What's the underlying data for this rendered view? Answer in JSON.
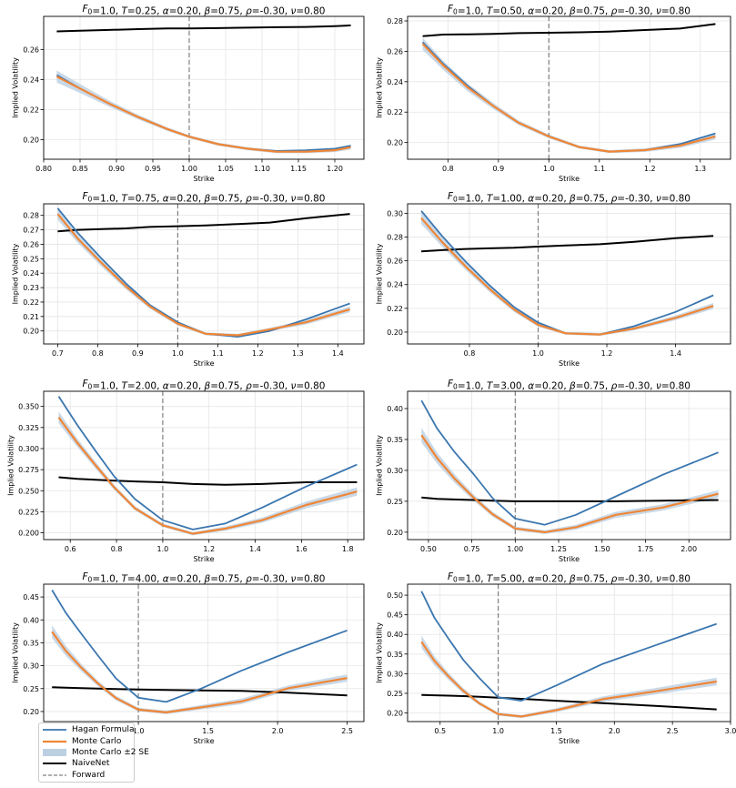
{
  "legend": {
    "items": [
      {
        "label": "Hagan Formula",
        "color": "#3a76af",
        "style": "line"
      },
      {
        "label": "Monte Carlo",
        "color": "#ef8636",
        "style": "line"
      },
      {
        "label": "Monte Carlo ±2 SE",
        "color": "#bcd0e2",
        "style": "band"
      },
      {
        "label": "NaiveNet",
        "color": "#000000",
        "style": "line"
      },
      {
        "label": "Forward",
        "color": "#7f7f7f",
        "style": "dashed"
      }
    ]
  },
  "chart_data": [
    {
      "type": "line",
      "title": "F0=1.0, T=0.25, α=0.20, β=0.75, ρ=-0.30, ν=0.80",
      "T": "0.25",
      "xlabel": "Strike",
      "ylabel": "Implied Volatility",
      "xlim": [
        0.8,
        1.24
      ],
      "ylim": [
        0.187,
        0.282
      ],
      "xticks": [
        0.8,
        0.85,
        0.9,
        0.95,
        1.0,
        1.05,
        1.1,
        1.15,
        1.2
      ],
      "xtick_labels": [
        "0.80",
        "0.85",
        "0.90",
        "0.95",
        "1.00",
        "1.05",
        "1.10",
        "1.15",
        "1.20"
      ],
      "yticks": [
        0.2,
        0.22,
        0.24,
        0.26
      ],
      "ytick_labels": [
        "0.20",
        "0.22",
        "0.24",
        "0.26"
      ],
      "forward": 1.0,
      "x": [
        0.818,
        0.85,
        0.89,
        0.93,
        0.97,
        1.0,
        1.04,
        1.08,
        1.12,
        1.16,
        1.2,
        1.222
      ],
      "series": [
        {
          "name": "Hagan Formula",
          "values": [
            0.243,
            0.234,
            0.224,
            0.215,
            0.207,
            0.202,
            0.197,
            0.194,
            0.1925,
            0.193,
            0.194,
            0.196
          ]
        },
        {
          "name": "Monte Carlo",
          "values": [
            0.242,
            0.234,
            0.224,
            0.215,
            0.207,
            0.202,
            0.197,
            0.194,
            0.192,
            0.192,
            0.193,
            0.195
          ]
        },
        {
          "name": "NaiveNet",
          "values": [
            0.272,
            0.2725,
            0.273,
            0.2735,
            0.274,
            0.274,
            0.2742,
            0.2745,
            0.2748,
            0.275,
            0.2755,
            0.276
          ]
        }
      ],
      "band": {
        "name": "Monte Carlo ±2 SE",
        "halfwidth": [
          0.004,
          0.003,
          0.002,
          0.0015,
          0.0012,
          0.001,
          0.001,
          0.001,
          0.001,
          0.001,
          0.0012,
          0.0015
        ]
      }
    },
    {
      "type": "line",
      "title": "F0=1.0, T=0.50, α=0.20, β=0.75, ρ=-0.30, ν=0.80",
      "T": "0.50",
      "xlabel": "Strike",
      "ylabel": "Implied Volatility",
      "xlim": [
        0.72,
        1.36
      ],
      "ylim": [
        0.189,
        0.283
      ],
      "xticks": [
        0.8,
        0.9,
        1.0,
        1.1,
        1.2,
        1.3
      ],
      "xtick_labels": [
        "0.8",
        "0.9",
        "1.0",
        "1.1",
        "1.2",
        "1.3"
      ],
      "yticks": [
        0.2,
        0.22,
        0.24,
        0.26,
        0.28
      ],
      "ytick_labels": [
        "0.20",
        "0.22",
        "0.24",
        "0.26",
        "0.28"
      ],
      "forward": 1.0,
      "x": [
        0.75,
        0.79,
        0.84,
        0.89,
        0.94,
        1.0,
        1.06,
        1.12,
        1.19,
        1.26,
        1.33
      ],
      "series": [
        {
          "name": "Hagan Formula",
          "values": [
            0.266,
            0.252,
            0.237,
            0.224,
            0.213,
            0.204,
            0.197,
            0.194,
            0.195,
            0.199,
            0.206
          ]
        },
        {
          "name": "Monte Carlo",
          "values": [
            0.265,
            0.251,
            0.236,
            0.224,
            0.213,
            0.204,
            0.197,
            0.194,
            0.195,
            0.198,
            0.204
          ]
        },
        {
          "name": "NaiveNet",
          "values": [
            0.27,
            0.271,
            0.2712,
            0.2715,
            0.272,
            0.2722,
            0.2725,
            0.273,
            0.274,
            0.275,
            0.278
          ]
        }
      ],
      "band": {
        "name": "Monte Carlo ±2 SE",
        "halfwidth": [
          0.004,
          0.003,
          0.0025,
          0.002,
          0.0015,
          0.0012,
          0.001,
          0.001,
          0.0012,
          0.0015,
          0.002
        ]
      }
    },
    {
      "type": "line",
      "title": "F0=1.0, T=0.75, α=0.20, β=0.75, ρ=-0.30, ν=0.80",
      "T": "0.75",
      "xlabel": "Strike",
      "ylabel": "Implied Volatility",
      "xlim": [
        0.665,
        1.465
      ],
      "ylim": [
        0.191,
        0.288
      ],
      "xticks": [
        0.7,
        0.8,
        0.9,
        1.0,
        1.1,
        1.2,
        1.3,
        1.4
      ],
      "xtick_labels": [
        "0.7",
        "0.8",
        "0.9",
        "1.0",
        "1.1",
        "1.2",
        "1.3",
        "1.4"
      ],
      "yticks": [
        0.2,
        0.21,
        0.22,
        0.23,
        0.24,
        0.25,
        0.26,
        0.27,
        0.28
      ],
      "ytick_labels": [
        "0.20",
        "0.21",
        "0.22",
        "0.23",
        "0.24",
        "0.25",
        "0.26",
        "0.27",
        "0.28"
      ],
      "forward": 1.0,
      "x": [
        0.7,
        0.75,
        0.81,
        0.87,
        0.93,
        1.0,
        1.07,
        1.15,
        1.23,
        1.32,
        1.43
      ],
      "series": [
        {
          "name": "Hagan Formula",
          "values": [
            0.285,
            0.268,
            0.25,
            0.233,
            0.218,
            0.206,
            0.198,
            0.196,
            0.2,
            0.208,
            0.219
          ]
        },
        {
          "name": "Monte Carlo",
          "values": [
            0.281,
            0.264,
            0.247,
            0.231,
            0.217,
            0.205,
            0.198,
            0.197,
            0.201,
            0.206,
            0.215
          ]
        },
        {
          "name": "NaiveNet",
          "values": [
            0.269,
            0.27,
            0.2705,
            0.271,
            0.272,
            0.2725,
            0.273,
            0.274,
            0.275,
            0.278,
            0.281
          ]
        }
      ],
      "band": {
        "name": "Monte Carlo ±2 SE",
        "halfwidth": [
          0.004,
          0.003,
          0.0025,
          0.002,
          0.0015,
          0.0012,
          0.001,
          0.001,
          0.0012,
          0.0015,
          0.002
        ]
      }
    },
    {
      "type": "line",
      "title": "F0=1.0, T=1.00, α=0.20, β=0.75, ρ=-0.30, ν=0.80",
      "T": "1.00",
      "xlabel": "Strike",
      "ylabel": "Implied Volatility",
      "xlim": [
        0.62,
        1.56
      ],
      "ylim": [
        0.19,
        0.308
      ],
      "xticks": [
        0.8,
        1.0,
        1.2,
        1.4
      ],
      "xtick_labels": [
        "0.8",
        "1.0",
        "1.2",
        "1.4"
      ],
      "yticks": [
        0.2,
        0.22,
        0.24,
        0.26,
        0.28,
        0.3
      ],
      "ytick_labels": [
        "0.20",
        "0.22",
        "0.24",
        "0.26",
        "0.28",
        "0.30"
      ],
      "forward": 1.0,
      "x": [
        0.66,
        0.72,
        0.79,
        0.86,
        0.93,
        1.0,
        1.08,
        1.18,
        1.28,
        1.4,
        1.51
      ],
      "series": [
        {
          "name": "Hagan Formula",
          "values": [
            0.302,
            0.281,
            0.259,
            0.239,
            0.221,
            0.208,
            0.199,
            0.198,
            0.205,
            0.217,
            0.231
          ]
        },
        {
          "name": "Monte Carlo",
          "values": [
            0.296,
            0.276,
            0.255,
            0.236,
            0.219,
            0.206,
            0.199,
            0.198,
            0.203,
            0.212,
            0.222
          ]
        },
        {
          "name": "NaiveNet",
          "values": [
            0.268,
            0.269,
            0.27,
            0.2705,
            0.271,
            0.272,
            0.273,
            0.274,
            0.276,
            0.279,
            0.281
          ]
        }
      ],
      "band": {
        "name": "Monte Carlo ±2 SE",
        "halfwidth": [
          0.005,
          0.004,
          0.003,
          0.0025,
          0.002,
          0.0015,
          0.0012,
          0.0012,
          0.0015,
          0.002,
          0.0025
        ]
      }
    },
    {
      "type": "line",
      "title": "F0=1.0, T=2.00, α=0.20, β=0.75, ρ=-0.30, ν=0.80",
      "T": "2.00",
      "xlabel": "Strike",
      "ylabel": "Implied Volatility",
      "xlim": [
        0.485,
        1.87
      ],
      "ylim": [
        0.192,
        0.368
      ],
      "xticks": [
        0.6,
        0.8,
        1.0,
        1.2,
        1.4,
        1.6,
        1.8
      ],
      "xtick_labels": [
        "0.6",
        "0.8",
        "1.0",
        "1.2",
        "1.4",
        "1.6",
        "1.8"
      ],
      "yticks": [
        0.2,
        0.225,
        0.25,
        0.275,
        0.3,
        0.325,
        0.35
      ],
      "ytick_labels": [
        "0.200",
        "0.225",
        "0.250",
        "0.275",
        "0.300",
        "0.325",
        "0.350"
      ],
      "forward": 1.0,
      "x": [
        0.55,
        0.63,
        0.71,
        0.79,
        0.88,
        1.0,
        1.13,
        1.27,
        1.43,
        1.62,
        1.84
      ],
      "series": [
        {
          "name": "Hagan Formula",
          "values": [
            0.362,
            0.328,
            0.297,
            0.267,
            0.24,
            0.215,
            0.204,
            0.211,
            0.23,
            0.255,
            0.281
          ]
        },
        {
          "name": "Monte Carlo",
          "values": [
            0.337,
            0.307,
            0.28,
            0.254,
            0.229,
            0.209,
            0.199,
            0.205,
            0.215,
            0.233,
            0.249
          ]
        },
        {
          "name": "NaiveNet",
          "values": [
            0.266,
            0.264,
            0.263,
            0.262,
            0.261,
            0.26,
            0.258,
            0.257,
            0.258,
            0.26,
            0.26
          ]
        }
      ],
      "band": {
        "name": "Monte Carlo ±2 SE",
        "halfwidth": [
          0.007,
          0.005,
          0.004,
          0.003,
          0.0025,
          0.002,
          0.002,
          0.0025,
          0.003,
          0.004,
          0.005
        ]
      }
    },
    {
      "type": "line",
      "title": "F0=1.0, T=3.00, α=0.20, β=0.75, ρ=-0.30, ν=0.80",
      "T": "3.00",
      "xlabel": "Strike",
      "ylabel": "Implied Volatility",
      "xlim": [
        0.38,
        2.24
      ],
      "ylim": [
        0.188,
        0.428
      ],
      "xticks": [
        0.5,
        0.75,
        1.0,
        1.25,
        1.5,
        1.75,
        2.0
      ],
      "xtick_labels": [
        "0.50",
        "0.75",
        "1.00",
        "1.25",
        "1.50",
        "1.75",
        "2.00"
      ],
      "yticks": [
        0.2,
        0.25,
        0.3,
        0.35,
        0.4
      ],
      "ytick_labels": [
        "0.20",
        "0.25",
        "0.30",
        "0.35",
        "0.40"
      ],
      "forward": 1.0,
      "x": [
        0.46,
        0.55,
        0.65,
        0.76,
        0.87,
        1.0,
        1.17,
        1.35,
        1.58,
        1.85,
        2.17
      ],
      "series": [
        {
          "name": "Hagan Formula",
          "values": [
            0.413,
            0.368,
            0.33,
            0.294,
            0.255,
            0.222,
            0.212,
            0.228,
            0.258,
            0.293,
            0.329
          ]
        },
        {
          "name": "Monte Carlo",
          "values": [
            0.357,
            0.32,
            0.287,
            0.256,
            0.229,
            0.206,
            0.2,
            0.208,
            0.228,
            0.24,
            0.262
          ]
        },
        {
          "name": "NaiveNet",
          "values": [
            0.256,
            0.254,
            0.253,
            0.252,
            0.251,
            0.25,
            0.25,
            0.25,
            0.25,
            0.251,
            0.252
          ]
        }
      ],
      "band": {
        "name": "Monte Carlo ±2 SE",
        "halfwidth": [
          0.012,
          0.009,
          0.007,
          0.005,
          0.004,
          0.003,
          0.003,
          0.004,
          0.005,
          0.005,
          0.006
        ]
      }
    },
    {
      "type": "line",
      "title": "F0=1.0, T=4.00, α=0.20, β=0.75, ρ=-0.30, ν=0.80",
      "T": "4.00",
      "xlabel": "Strike",
      "ylabel": "Implied Volatility",
      "xlim": [
        0.32,
        2.62
      ],
      "ylim": [
        0.178,
        0.478
      ],
      "xticks": [
        1.0,
        1.5,
        2.0,
        2.5
      ],
      "xtick_labels": [
        "1.0",
        "1.5",
        "2.0",
        "2.5"
      ],
      "yticks": [
        0.2,
        0.25,
        0.3,
        0.35,
        0.4,
        0.45
      ],
      "ytick_labels": [
        "0.20",
        "0.25",
        "0.30",
        "0.35",
        "0.40",
        "0.45"
      ],
      "forward": 1.0,
      "x": [
        0.38,
        0.48,
        0.59,
        0.71,
        0.84,
        1.0,
        1.2,
        1.45,
        1.74,
        2.08,
        2.5
      ],
      "series": [
        {
          "name": "Hagan Formula",
          "values": [
            0.465,
            0.415,
            0.37,
            0.322,
            0.272,
            0.23,
            0.221,
            0.25,
            0.289,
            0.33,
            0.377
          ]
        },
        {
          "name": "Monte Carlo",
          "values": [
            0.374,
            0.332,
            0.296,
            0.261,
            0.229,
            0.204,
            0.198,
            0.209,
            0.222,
            0.251,
            0.273
          ]
        },
        {
          "name": "NaiveNet",
          "values": [
            0.253,
            0.252,
            0.251,
            0.25,
            0.249,
            0.248,
            0.247,
            0.246,
            0.245,
            0.241,
            0.235
          ]
        }
      ],
      "band": {
        "name": "Monte Carlo ±2 SE",
        "halfwidth": [
          0.014,
          0.011,
          0.008,
          0.006,
          0.005,
          0.004,
          0.004,
          0.005,
          0.006,
          0.006,
          0.008
        ]
      }
    },
    {
      "type": "line",
      "title": "F0=1.0, T=5.00, α=0.20, β=0.75, ρ=-0.30, ν=0.80",
      "T": "5.00",
      "xlabel": "Strike",
      "ylabel": "Implied Volatility",
      "xlim": [
        0.22,
        3.0
      ],
      "ylim": [
        0.178,
        0.528
      ],
      "xticks": [
        0.5,
        1.0,
        1.5,
        2.0,
        2.5,
        3.0
      ],
      "xtick_labels": [
        "0.5",
        "1.0",
        "1.5",
        "2.0",
        "2.5",
        "3.0"
      ],
      "yticks": [
        0.2,
        0.25,
        0.3,
        0.35,
        0.4,
        0.45,
        0.5
      ],
      "ytick_labels": [
        "0.20",
        "0.25",
        "0.30",
        "0.35",
        "0.40",
        "0.45",
        "0.50"
      ],
      "forward": 1.0,
      "x": [
        0.34,
        0.45,
        0.57,
        0.7,
        0.84,
        1.0,
        1.2,
        1.5,
        1.9,
        2.35,
        2.88
      ],
      "series": [
        {
          "name": "Hagan Formula",
          "values": [
            0.51,
            0.443,
            0.39,
            0.335,
            0.288,
            0.24,
            0.231,
            0.27,
            0.325,
            0.372,
            0.427
          ]
        },
        {
          "name": "Monte Carlo",
          "values": [
            0.381,
            0.333,
            0.294,
            0.256,
            0.224,
            0.197,
            0.191,
            0.207,
            0.235,
            0.255,
            0.28
          ]
        },
        {
          "name": "NaiveNet",
          "values": [
            0.246,
            0.245,
            0.244,
            0.243,
            0.241,
            0.239,
            0.236,
            0.231,
            0.225,
            0.218,
            0.209
          ]
        }
      ],
      "band": {
        "name": "Monte Carlo ±2 SE",
        "halfwidth": [
          0.016,
          0.012,
          0.009,
          0.007,
          0.005,
          0.004,
          0.004,
          0.005,
          0.007,
          0.008,
          0.01
        ]
      }
    }
  ]
}
